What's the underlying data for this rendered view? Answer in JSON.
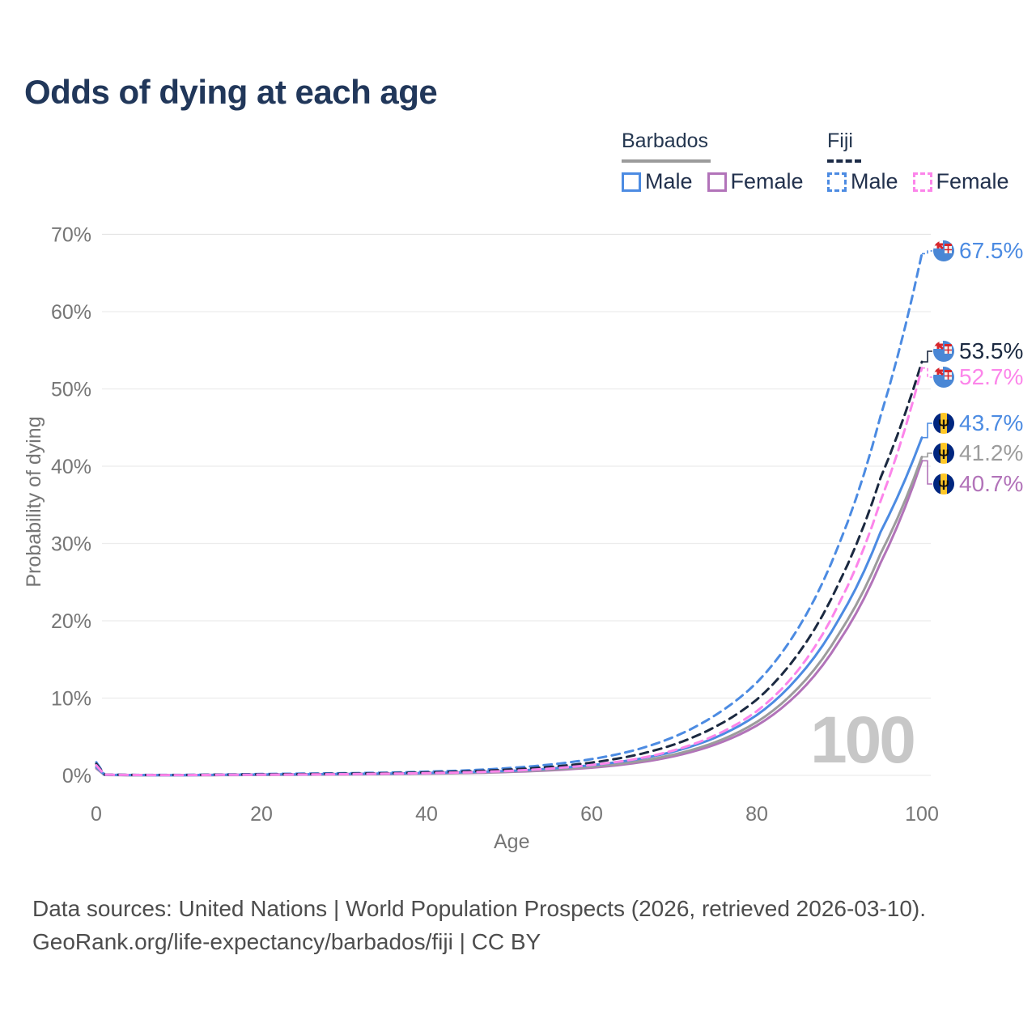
{
  "title": "Odds of dying at each age",
  "watermark": "100",
  "legend": {
    "groups": [
      {
        "title": "Barbados",
        "style": "solid",
        "items": [
          {
            "label": "Male",
            "color": "#4c8be2"
          },
          {
            "label": "Female",
            "color": "#b273b9"
          }
        ]
      },
      {
        "title": "Fiji",
        "style": "dashed",
        "items": [
          {
            "label": "Male",
            "color": "#4c8be2"
          },
          {
            "label": "Female",
            "color": "#fc85ea"
          }
        ]
      }
    ]
  },
  "footer": {
    "line1": "Data sources: United Nations | World Population Prospects (2026, retrieved 2026-03-10).",
    "line2": "GeoRank.org/life-expectancy/barbados/fiji | CC BY"
  },
  "chart_data": {
    "type": "line",
    "title": "Odds of dying at each age",
    "xlabel": "Age",
    "ylabel": "Probability of dying",
    "xlim": [
      0,
      100
    ],
    "ylim_percent": [
      0,
      70
    ],
    "x_ticks": [
      0,
      20,
      40,
      60,
      80,
      100
    ],
    "y_ticks_percent": [
      0,
      10,
      20,
      30,
      40,
      50,
      60,
      70
    ],
    "grid": "horizontal",
    "legend_position": "top-right",
    "watermark_age": "100",
    "ages": [
      0,
      1,
      5,
      10,
      15,
      20,
      25,
      30,
      35,
      40,
      45,
      50,
      55,
      60,
      65,
      70,
      75,
      80,
      85,
      90,
      95,
      100
    ],
    "series": [
      {
        "id": "barbados-female",
        "country": "Barbados",
        "sex": "Female",
        "color": "#b273b9",
        "dashed": false,
        "end_label": "40.7%",
        "flag": "barbados",
        "values_percent": [
          0.9,
          0.05,
          0.03,
          0.02,
          0.04,
          0.06,
          0.09,
          0.12,
          0.16,
          0.22,
          0.3,
          0.44,
          0.66,
          1.0,
          1.55,
          2.48,
          4.0,
          6.45,
          10.6,
          17.4,
          27.5,
          40.7
        ]
      },
      {
        "id": "barbados-total",
        "country": "Barbados",
        "sex": "Both",
        "color": "#9c9c9c",
        "dashed": false,
        "end_label": "41.2%",
        "flag": "barbados",
        "values_percent": [
          1.0,
          0.06,
          0.03,
          0.03,
          0.05,
          0.08,
          0.11,
          0.14,
          0.19,
          0.26,
          0.35,
          0.5,
          0.74,
          1.12,
          1.72,
          2.7,
          4.3,
          6.9,
          11.3,
          18.4,
          28.7,
          41.2
        ]
      },
      {
        "id": "barbados-male",
        "country": "Barbados",
        "sex": "Male",
        "color": "#4c8be2",
        "dashed": false,
        "end_label": "43.7%",
        "flag": "barbados",
        "values_percent": [
          1.1,
          0.07,
          0.04,
          0.03,
          0.07,
          0.11,
          0.14,
          0.18,
          0.23,
          0.31,
          0.42,
          0.58,
          0.88,
          1.32,
          2.0,
          3.1,
          4.9,
          7.8,
          12.7,
          20.3,
          31.5,
          43.7
        ]
      },
      {
        "id": "fiji-male",
        "country": "Fiji",
        "sex": "Male",
        "color": "#4c8be2",
        "dashed": true,
        "end_label": "67.5%",
        "flag": "fiji",
        "values_percent": [
          1.7,
          0.12,
          0.06,
          0.06,
          0.12,
          0.18,
          0.23,
          0.28,
          0.35,
          0.48,
          0.65,
          0.95,
          1.4,
          2.1,
          3.2,
          5.0,
          7.8,
          12.0,
          19.0,
          30.0,
          46.5,
          67.5
        ]
      },
      {
        "id": "fiji-total",
        "country": "Fiji",
        "sex": "Both",
        "color": "#1b2940",
        "dashed": true,
        "end_label": "53.5%",
        "flag": "fiji",
        "values_percent": [
          1.5,
          0.1,
          0.05,
          0.05,
          0.09,
          0.13,
          0.17,
          0.22,
          0.28,
          0.38,
          0.52,
          0.75,
          1.1,
          1.65,
          2.55,
          4.0,
          6.3,
          9.8,
          15.7,
          25.0,
          38.5,
          53.5
        ]
      },
      {
        "id": "fiji-female",
        "country": "Fiji",
        "sex": "Female",
        "color": "#fc85ea",
        "dashed": true,
        "end_label": "52.7%",
        "flag": "fiji",
        "values_percent": [
          1.3,
          0.09,
          0.05,
          0.04,
          0.07,
          0.09,
          0.12,
          0.16,
          0.22,
          0.29,
          0.4,
          0.58,
          0.88,
          1.35,
          2.05,
          3.25,
          5.2,
          8.3,
          13.6,
          22.3,
          35.5,
          52.7
        ]
      }
    ]
  }
}
